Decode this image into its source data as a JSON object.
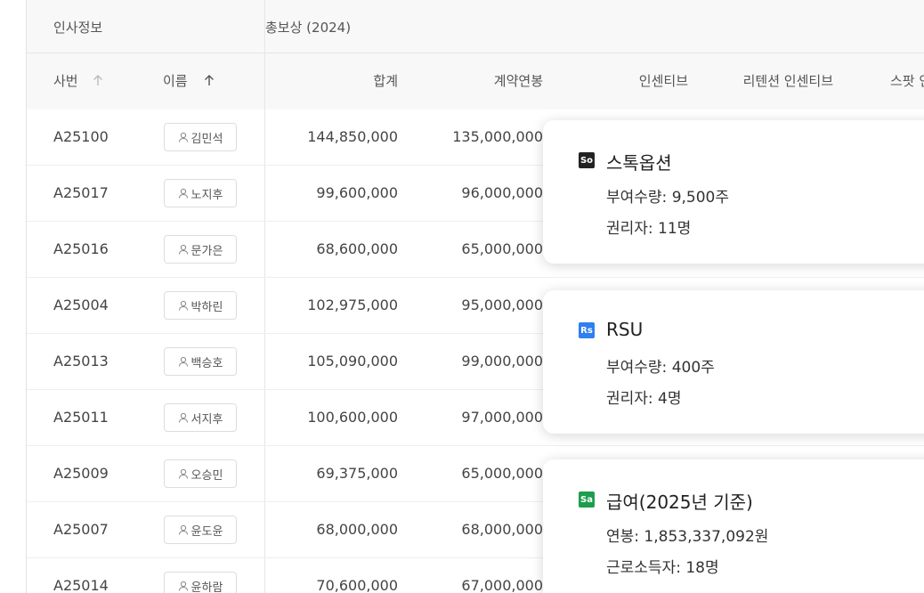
{
  "table": {
    "group_headers": [
      "인사정보",
      "총보상 (2024)"
    ],
    "columns": [
      "사번",
      "이름",
      "합계",
      "계약연봉",
      "인센티브",
      "리텐션 인센티브",
      "스팟 인센티브"
    ],
    "rows": [
      [
        "A25100",
        "김민석",
        "144,850,000",
        "135,000,000"
      ],
      [
        "A25017",
        "노지후",
        "99,600,000",
        "96,000,000"
      ],
      [
        "A25016",
        "문가은",
        "68,600,000",
        "65,000,000"
      ],
      [
        "A25004",
        "박하린",
        "102,975,000",
        "95,000,000"
      ],
      [
        "A25013",
        "백승호",
        "105,090,000",
        "99,000,000"
      ],
      [
        "A25011",
        "서지후",
        "100,600,000",
        "97,000,000"
      ],
      [
        "A25009",
        "오승민",
        "69,375,000",
        "65,000,000"
      ],
      [
        "A25007",
        "윤도윤",
        "68,000,000",
        "68,000,000"
      ],
      [
        "A25014",
        "윤하람",
        "70,600,000",
        "67,000,000"
      ]
    ]
  },
  "cards": [
    {
      "badge": "So",
      "title": "스톡옵션",
      "lines": [
        "부여수량: 9,500주",
        "권리자: 11명"
      ]
    },
    {
      "badge": "Rs",
      "title": "RSU",
      "lines": [
        "부여수량: 400주",
        "권리자: 4명"
      ]
    },
    {
      "badge": "Sa",
      "title": "급여(2025년 기준)",
      "lines": [
        "연봉: 1,853,337,092원",
        "근로소득자: 18명"
      ]
    }
  ]
}
